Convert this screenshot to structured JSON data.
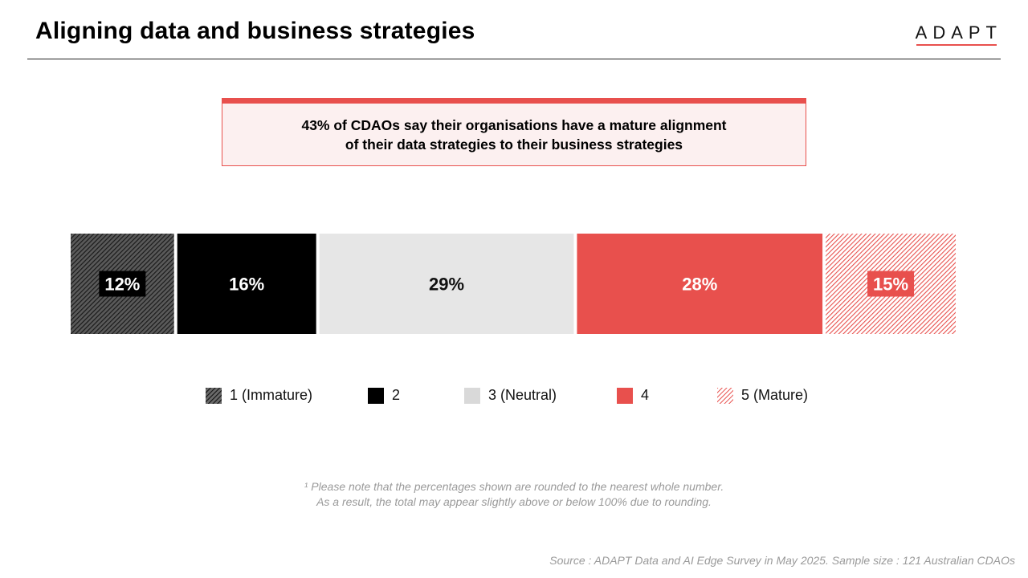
{
  "header": {
    "title": "Aligning data and business strategies",
    "logo_text": "ADAPT"
  },
  "callout": {
    "text_line1": "43% of CDAOs say their organisations have a mature alignment",
    "text_line2": "of their data strategies to their business strategies",
    "accent_color": "#e8504d"
  },
  "chart_data": {
    "type": "bar",
    "orientation": "horizontal-stacked-100",
    "categories": [
      "1 (Immature)",
      "2",
      "3 (Neutral)",
      "4",
      "5 (Mature)"
    ],
    "values": [
      12,
      16,
      29,
      28,
      15
    ],
    "value_labels": [
      "12%",
      "16%",
      "29%",
      "28%",
      "15%"
    ],
    "colors": [
      "#3a3a3a",
      "#000000",
      "#e6e6e6",
      "#e8504d",
      "#e8504d"
    ],
    "patterns": [
      "hatch-dark",
      "solid",
      "solid",
      "solid",
      "hatch-red"
    ],
    "legend_placement": "bottom",
    "grid": false
  },
  "legend": {
    "items": [
      {
        "label": "1 (Immature)",
        "swatch": "hatch-dark"
      },
      {
        "label": "2",
        "swatch": "solid-black"
      },
      {
        "label": "3 (Neutral)",
        "swatch": "solid-grey"
      },
      {
        "label": "4",
        "swatch": "solid-red"
      },
      {
        "label": "5 (Mature)",
        "swatch": "hatch-red"
      }
    ]
  },
  "footnote": {
    "line1": "¹ Please note that the percentages shown are rounded to the nearest whole number.",
    "line2": "As a result, the total may appear slightly above or below 100% due to rounding."
  },
  "source": "Source : ADAPT Data and AI Edge Survey in May 2025. Sample size : 121 Australian CDAOs"
}
